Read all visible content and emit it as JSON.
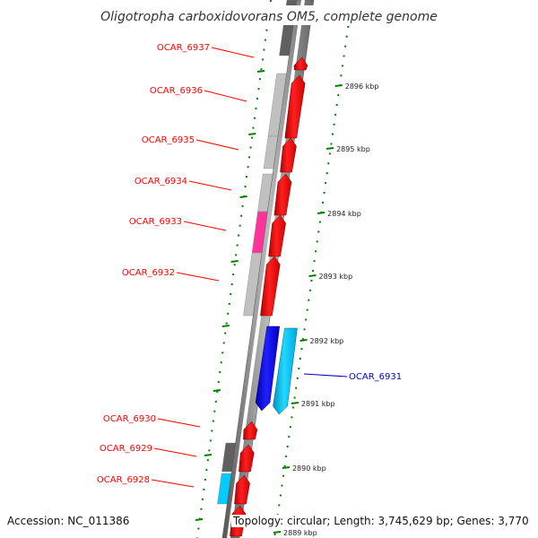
{
  "title": "Oligotropha carboxidovorans OM5, complete genome",
  "accession": "Accession: NC_011386",
  "topology": "Topology: circular; Length: 3,745,629 bp; Genes: 3,770",
  "colors": {
    "backbone": "#9a9a9a",
    "forward_cds": "#ff0000",
    "reverse_cds": "#0000ff",
    "cog_light_grey": "#c0c0c0",
    "cog_dark_grey": "#606060",
    "cog_magenta": "#ff3399",
    "cog_cyan": "#00ccff",
    "highlight_label_red": "#ff0000",
    "highlight_label_blue": "#0000cc",
    "tick_green": "#008000"
  },
  "gene_labels": [
    {
      "name": "OCAR_6937",
      "color": "red"
    },
    {
      "name": "OCAR_6936",
      "color": "red"
    },
    {
      "name": "OCAR_6935",
      "color": "red"
    },
    {
      "name": "OCAR_6934",
      "color": "red"
    },
    {
      "name": "OCAR_6933",
      "color": "red"
    },
    {
      "name": "OCAR_6932",
      "color": "red"
    },
    {
      "name": "OCAR_6931",
      "color": "blue"
    },
    {
      "name": "OCAR_6930",
      "color": "red"
    },
    {
      "name": "OCAR_6929",
      "color": "red"
    },
    {
      "name": "OCAR_6928",
      "color": "red"
    }
  ],
  "kbp_ticks": [
    "2896 kbp",
    "2895 kbp",
    "2894 kbp",
    "2893 kbp",
    "2892 kbp",
    "2891 kbp",
    "2890 kbp",
    "2889 kbp"
  ]
}
